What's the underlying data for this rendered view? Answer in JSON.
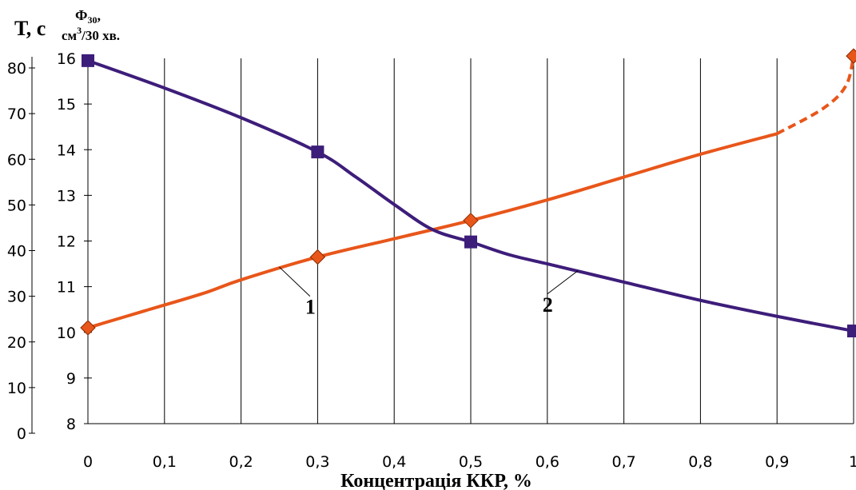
{
  "chart_data": {
    "type": "line",
    "title": "",
    "xlabel": "Концентрація ККР, %",
    "y_left_label": "Т, с",
    "y_right_label": {
      "main": "Ф",
      "sub": "30",
      "suffix": ",",
      "unit_pre": "см",
      "unit_sup": "3",
      "unit_post": "/30 хв."
    },
    "x_ticks": [
      "0",
      "0,1",
      "0,2",
      "0,3",
      "0,4",
      "0,5",
      "0,6",
      "0,7",
      "0,8",
      "0,9",
      "1"
    ],
    "y_left_ticks": [
      "0",
      "10",
      "20",
      "30",
      "40",
      "50",
      "60",
      "70",
      "80"
    ],
    "y_right_ticks": [
      "8",
      "9",
      "10",
      "11",
      "12",
      "13",
      "14",
      "15",
      "16"
    ],
    "xlim": [
      0,
      1
    ],
    "ylim_left": [
      0,
      80
    ],
    "ylim_right": [
      8,
      16
    ],
    "grid": "vertical",
    "series": [
      {
        "name": "1",
        "axis": "left",
        "color": "#e8561a",
        "marker": "diamond",
        "x": [
          0,
          0.3,
          0.5,
          1.0
        ],
        "y": [
          21,
          36.5,
          44.5,
          80.5
        ],
        "curve_x": [
          0,
          0.07,
          0.15,
          0.2,
          0.3,
          0.4,
          0.5,
          0.6,
          0.7,
          0.8,
          0.9
        ],
        "curve_y": [
          21,
          24.5,
          28.5,
          31.5,
          36.5,
          40.5,
          44.5,
          49,
          54,
          59,
          63.5
        ],
        "dashed_x": [
          0.9,
          0.96,
          0.99,
          1.0
        ],
        "dashed_y": [
          63.5,
          69,
          74,
          80.5
        ]
      },
      {
        "name": "2",
        "axis": "right",
        "color": "#3d1d7a",
        "marker": "square",
        "x": [
          0,
          0.3,
          0.5,
          1.0
        ],
        "y": [
          15.95,
          13.95,
          11.98,
          10.03
        ],
        "curve_x": [
          0,
          0.1,
          0.2,
          0.3,
          0.35,
          0.4,
          0.45,
          0.5,
          0.55,
          0.6,
          0.65,
          0.7,
          0.8,
          0.9,
          1.0
        ],
        "curve_y": [
          15.95,
          15.35,
          14.7,
          13.95,
          13.4,
          12.8,
          12.25,
          11.98,
          11.7,
          11.5,
          11.3,
          11.1,
          10.7,
          10.35,
          10.03
        ]
      }
    ],
    "annotations": [
      {
        "text": "1",
        "series": "1"
      },
      {
        "text": "2",
        "series": "2"
      }
    ]
  }
}
